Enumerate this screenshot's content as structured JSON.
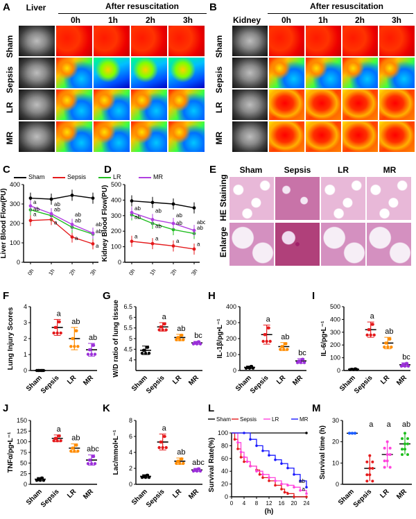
{
  "panel_labels": [
    "A",
    "B",
    "C",
    "D",
    "E",
    "F",
    "G",
    "H",
    "I",
    "J",
    "K",
    "L",
    "M"
  ],
  "A": {
    "organ": "Liver",
    "header": "After resuscitation",
    "times": [
      "0h",
      "1h",
      "2h",
      "3h"
    ],
    "rows": [
      "Sham",
      "Sepsis",
      "LR",
      "MR"
    ]
  },
  "B": {
    "organ": "Kidney",
    "header": "After resuscitation",
    "times": [
      "0h",
      "1h",
      "2h",
      "3h"
    ],
    "rows": [
      "Sham",
      "Sepsis",
      "LR",
      "MR"
    ]
  },
  "E": {
    "cols": [
      "Sham",
      "Sepsis",
      "LR",
      "MR"
    ],
    "rows": [
      "HE Staining",
      "Enlarge"
    ]
  },
  "legend4": [
    "Sham",
    "Sepsis",
    "LR",
    "MR"
  ],
  "colors": {
    "Sham": "#000000",
    "Sepsis": "#e41a1c",
    "LR": "#1fbd1f",
    "MR": "#b040e0",
    "LR_bar": "#ff8c00",
    "MR_bar": "#9b30d9",
    "L_LR": "#ff44dd",
    "L_MR": "#1a1aff"
  },
  "chart_data": [
    {
      "panel": "C",
      "type": "line",
      "ylabel": "Liver Blood Flow(PU)",
      "x": [
        "0h",
        "1h",
        "2h",
        "3h"
      ],
      "ylim": [
        0,
        400
      ],
      "yticks": [
        0,
        100,
        200,
        300,
        400
      ],
      "series": [
        {
          "name": "Sham",
          "values": [
            330,
            325,
            345,
            330
          ]
        },
        {
          "name": "Sepsis",
          "values": [
            215,
            220,
            130,
            95
          ]
        },
        {
          "name": "LR",
          "values": [
            270,
            240,
            180,
            145
          ]
        },
        {
          "name": "MR",
          "values": [
            290,
            250,
            195,
            150
          ]
        }
      ],
      "annotations": [
        {
          "x": 0,
          "y": 300,
          "text": "a"
        },
        {
          "x": 0,
          "y": 265,
          "text": "ab"
        },
        {
          "x": 0,
          "y": 238,
          "text": "a"
        },
        {
          "x": 1,
          "y": 290,
          "text": "ab"
        },
        {
          "x": 1,
          "y": 262,
          "text": "ab"
        },
        {
          "x": 1,
          "y": 195,
          "text": "a"
        },
        {
          "x": 2,
          "y": 235,
          "text": "ab"
        },
        {
          "x": 2,
          "y": 205,
          "text": "ab"
        },
        {
          "x": 2,
          "y": 115,
          "text": "a"
        },
        {
          "x": 3,
          "y": 185,
          "text": "ab"
        },
        {
          "x": 3,
          "y": 150,
          "text": "ab"
        },
        {
          "x": 3,
          "y": 75,
          "text": "a"
        }
      ]
    },
    {
      "panel": "D",
      "type": "line",
      "ylabel": "Kidney Blood Flow(PU)",
      "x": [
        "0h",
        "1h",
        "2h",
        "3h"
      ],
      "ylim": [
        0,
        500
      ],
      "yticks": [
        0,
        100,
        200,
        300,
        400,
        500
      ],
      "series": [
        {
          "name": "Sham",
          "values": [
            395,
            385,
            375,
            350
          ]
        },
        {
          "name": "Sepsis",
          "values": [
            135,
            120,
            105,
            85
          ]
        },
        {
          "name": "LR",
          "values": [
            305,
            250,
            210,
            185
          ]
        },
        {
          "name": "MR",
          "values": [
            320,
            275,
            250,
            205
          ]
        }
      ],
      "annotations": [
        {
          "x": 0,
          "y": 335,
          "text": "ab"
        },
        {
          "x": 0,
          "y": 280,
          "text": "ab"
        },
        {
          "x": 0,
          "y": 155,
          "text": "a"
        },
        {
          "x": 1,
          "y": 320,
          "text": "ab"
        },
        {
          "x": 1,
          "y": 220,
          "text": "ab"
        },
        {
          "x": 1,
          "y": 140,
          "text": "a"
        },
        {
          "x": 2,
          "y": 290,
          "text": "ab"
        },
        {
          "x": 2,
          "y": 240,
          "text": "ab"
        },
        {
          "x": 2,
          "y": 125,
          "text": "a"
        },
        {
          "x": 3,
          "y": 245,
          "text": "abc"
        },
        {
          "x": 3,
          "y": 210,
          "text": "ab"
        },
        {
          "x": 3,
          "y": 105,
          "text": "a"
        }
      ]
    },
    {
      "panel": "F",
      "type": "scatter",
      "ylabel": "Lung Injury Scores",
      "categories": [
        "Sham",
        "Sepsis",
        "LR",
        "MR"
      ],
      "ylim": [
        0,
        4
      ],
      "yticks": [
        0,
        1,
        2,
        3,
        4
      ],
      "means": [
        0,
        2.7,
        2.0,
        1.3
      ],
      "sd": [
        0,
        0.5,
        0.7,
        0.4
      ],
      "letters": [
        "",
        "a",
        "ab",
        "ab"
      ]
    },
    {
      "panel": "G",
      "type": "scatter",
      "ylabel": "W/D ratio of lung tissue",
      "categories": [
        "Sham",
        "Sepsis",
        "LR",
        "MR"
      ],
      "ylim": [
        3.5,
        6.5
      ],
      "yticks": [
        4.0,
        4.5,
        5.0,
        5.5,
        6.0,
        6.5
      ],
      "means": [
        4.45,
        5.55,
        5.05,
        4.8
      ],
      "sd": [
        0.2,
        0.2,
        0.15,
        0.07
      ],
      "letters": [
        "",
        "a",
        "ab",
        "bc"
      ]
    },
    {
      "panel": "H",
      "type": "scatter",
      "ylabel": "IL-1β/pg•L⁻¹",
      "categories": [
        "Sham",
        "Sepsis",
        "LR",
        "MR"
      ],
      "ylim": [
        0,
        400
      ],
      "yticks": [
        0,
        100,
        200,
        300,
        400
      ],
      "means": [
        20,
        225,
        150,
        60
      ],
      "sd": [
        8,
        60,
        25,
        15
      ],
      "letters": [
        "",
        "a",
        "ab",
        "bc"
      ]
    },
    {
      "panel": "I",
      "type": "scatter",
      "ylabel": "IL-6/pg•L⁻¹",
      "categories": [
        "Sham",
        "Sepsis",
        "LR",
        "MR"
      ],
      "ylim": [
        0,
        500
      ],
      "yticks": [
        0,
        100,
        200,
        300,
        400,
        500
      ],
      "means": [
        10,
        320,
        215,
        45
      ],
      "sd": [
        4,
        60,
        45,
        15
      ],
      "letters": [
        "",
        "a",
        "ab",
        "bc"
      ]
    },
    {
      "panel": "J",
      "type": "scatter",
      "ylabel": "TNFα/pg•L⁻¹",
      "categories": [
        "Sham",
        "Sepsis",
        "LR",
        "MR"
      ],
      "ylim": [
        0,
        150
      ],
      "yticks": [
        0,
        25,
        50,
        75,
        100,
        125,
        150
      ],
      "means": [
        12,
        108,
        85,
        57
      ],
      "sd": [
        4,
        8,
        10,
        12
      ],
      "letters": [
        "",
        "a",
        "ab",
        "abc"
      ]
    },
    {
      "panel": "K",
      "type": "scatter",
      "ylabel": "Lac/mmol•L⁻¹",
      "categories": [
        "Sham",
        "Sepsis",
        "LR",
        "MR"
      ],
      "ylim": [
        0,
        8
      ],
      "yticks": [
        0,
        2,
        4,
        6,
        8
      ],
      "means": [
        1.0,
        5.3,
        2.9,
        1.8
      ],
      "sd": [
        0.2,
        1.0,
        0.4,
        0.2
      ],
      "letters": [
        "",
        "a",
        "ab",
        "abc"
      ]
    },
    {
      "panel": "L",
      "type": "line",
      "ylabel": "Survival Rate(%)",
      "xlabel": "(h)",
      "x_ticks": [
        0,
        4,
        8,
        12,
        16,
        20,
        24
      ],
      "ylim": [
        0,
        100
      ],
      "yticks": [
        0,
        20,
        40,
        60,
        80,
        100
      ],
      "series": [
        {
          "name": "Sham",
          "x": [
            0,
            24
          ],
          "values": [
            100,
            100
          ]
        },
        {
          "name": "Sepsis",
          "x": [
            0,
            1,
            2,
            3,
            4,
            6,
            8,
            9,
            10,
            12,
            14,
            16,
            17,
            18,
            20,
            24
          ],
          "values": [
            100,
            90,
            75,
            62,
            55,
            48,
            42,
            35,
            30,
            25,
            18,
            12,
            7,
            5,
            0,
            0
          ]
        },
        {
          "name": "LR",
          "x": [
            0,
            2,
            3,
            4,
            5,
            6,
            8,
            10,
            12,
            14,
            16,
            18,
            20,
            22,
            24
          ],
          "values": [
            100,
            85,
            70,
            62,
            55,
            48,
            40,
            35,
            30,
            25,
            20,
            18,
            15,
            10,
            5
          ]
        },
        {
          "name": "MR",
          "x": [
            0,
            4,
            6,
            8,
            10,
            12,
            14,
            16,
            18,
            20,
            22,
            24
          ],
          "values": [
            100,
            100,
            90,
            80,
            72,
            65,
            58,
            52,
            45,
            35,
            25,
            15
          ]
        }
      ],
      "letters": [
        {
          "text": "ab",
          "series": "MR"
        },
        {
          "text": "a",
          "series": "LR"
        }
      ]
    },
    {
      "panel": "M",
      "type": "scatter",
      "ylabel": "Survival time (h)",
      "categories": [
        "Sham",
        "Sepsis",
        "LR",
        "MR"
      ],
      "ylim": [
        0,
        30
      ],
      "yticks": [
        0,
        10,
        20,
        30
      ],
      "means": [
        24,
        7.5,
        14,
        19
      ],
      "sd": [
        0,
        6,
        6,
        5
      ],
      "letters": [
        "",
        "a",
        "a",
        "ab"
      ]
    }
  ]
}
